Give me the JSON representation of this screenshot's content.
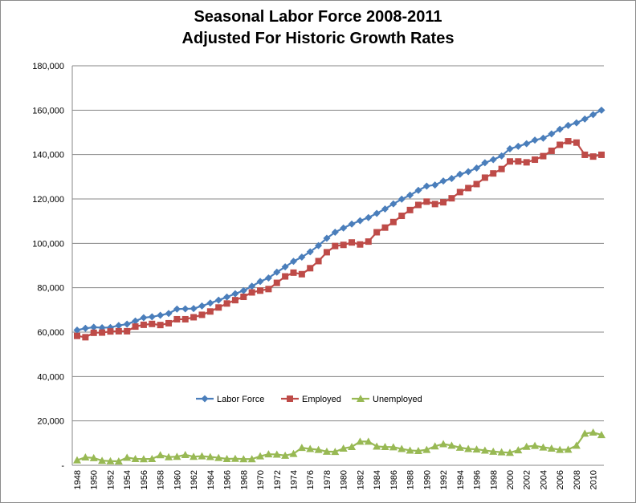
{
  "chart_data": {
    "type": "line",
    "title_line1": "Seasonal Labor Force 2008-2011",
    "title_line2": "Adjusted For Historic Growth Rates",
    "xlabel": "",
    "ylabel": "",
    "ylim": [
      0,
      180000
    ],
    "yticks": [
      0,
      20000,
      40000,
      60000,
      80000,
      100000,
      120000,
      140000,
      160000,
      180000
    ],
    "ytick_labels": [
      "-",
      "20,000",
      "40,000",
      "60,000",
      "80,000",
      "100,000",
      "120,000",
      "140,000",
      "160,000",
      "180,000"
    ],
    "xtick_labels": [
      "1948",
      "1950",
      "1952",
      "1954",
      "1956",
      "1958",
      "1960",
      "1962",
      "1964",
      "1966",
      "1968",
      "1970",
      "1972",
      "1974",
      "1976",
      "1978",
      "1980",
      "1982",
      "1984",
      "1986",
      "1988",
      "1990",
      "1992",
      "1994",
      "1996",
      "1998",
      "2000",
      "2002",
      "2004",
      "2006",
      "2008",
      "2010"
    ],
    "grid": "horizontal",
    "legend_position": "bottom-center",
    "x": [
      1948,
      1949,
      1950,
      1951,
      1952,
      1953,
      1954,
      1955,
      1956,
      1957,
      1958,
      1959,
      1960,
      1961,
      1962,
      1963,
      1964,
      1965,
      1966,
      1967,
      1968,
      1969,
      1970,
      1971,
      1972,
      1973,
      1974,
      1975,
      1976,
      1977,
      1978,
      1979,
      1980,
      1981,
      1982,
      1983,
      1984,
      1985,
      1986,
      1987,
      1988,
      1989,
      1990,
      1991,
      1992,
      1993,
      1994,
      1995,
      1996,
      1997,
      1998,
      1999,
      2000,
      2001,
      2002,
      2003,
      2004,
      2005,
      2006,
      2007,
      2008,
      2009,
      2010,
      2011
    ],
    "series": [
      {
        "name": "Labor Force",
        "color": "#4a7ebb",
        "marker": "diamond",
        "values": [
          60900,
          61700,
          62200,
          62000,
          62100,
          63000,
          63600,
          65000,
          66500,
          66900,
          67600,
          68400,
          70400,
          70500,
          70600,
          71800,
          73100,
          74400,
          75800,
          77300,
          78700,
          80700,
          82800,
          84400,
          87000,
          89400,
          91900,
          93800,
          96200,
          99000,
          102300,
          105000,
          106900,
          108700,
          110200,
          111600,
          113500,
          115500,
          117800,
          119900,
          121700,
          123900,
          125800,
          126300,
          128100,
          129200,
          131100,
          132300,
          133900,
          136300,
          137700,
          139400,
          142600,
          143700,
          144900,
          146500,
          147400,
          149300,
          151400,
          153100,
          154300,
          156000,
          158000,
          160000
        ]
      },
      {
        "name": "Employed",
        "color": "#be4b48",
        "marker": "square",
        "values": [
          58300,
          57700,
          59700,
          59800,
          60300,
          60400,
          60400,
          62500,
          63300,
          63700,
          63200,
          64000,
          65800,
          65800,
          66700,
          67800,
          69300,
          71100,
          72900,
          74400,
          75900,
          77900,
          78700,
          79400,
          82200,
          85100,
          86800,
          86100,
          88800,
          92000,
          96000,
          98800,
          99300,
          100400,
          99500,
          100800,
          105000,
          107100,
          109600,
          112400,
          115000,
          117300,
          118800,
          117700,
          118500,
          120300,
          123100,
          124900,
          126700,
          129600,
          131500,
          133500,
          136900,
          136900,
          136500,
          137700,
          139300,
          141700,
          144400,
          146000,
          145400,
          139900,
          139100,
          139900
        ]
      },
      {
        "name": "Unemployed",
        "color": "#98b954",
        "marker": "triangle",
        "values": [
          2300,
          3600,
          3300,
          2100,
          1900,
          1800,
          3500,
          2900,
          2800,
          2900,
          4600,
          3700,
          3900,
          4700,
          3900,
          4100,
          3800,
          3400,
          2900,
          3000,
          2800,
          2800,
          4100,
          5000,
          4900,
          4400,
          5200,
          7900,
          7400,
          7000,
          6200,
          6100,
          7600,
          8300,
          10700,
          10700,
          8500,
          8300,
          8200,
          7400,
          6700,
          6500,
          7000,
          8600,
          9600,
          8900,
          8000,
          7400,
          7200,
          6700,
          6200,
          5900,
          5700,
          6800,
          8400,
          8800,
          8100,
          7600,
          7000,
          7100,
          8900,
          14300,
          14800,
          13700
        ]
      }
    ]
  }
}
